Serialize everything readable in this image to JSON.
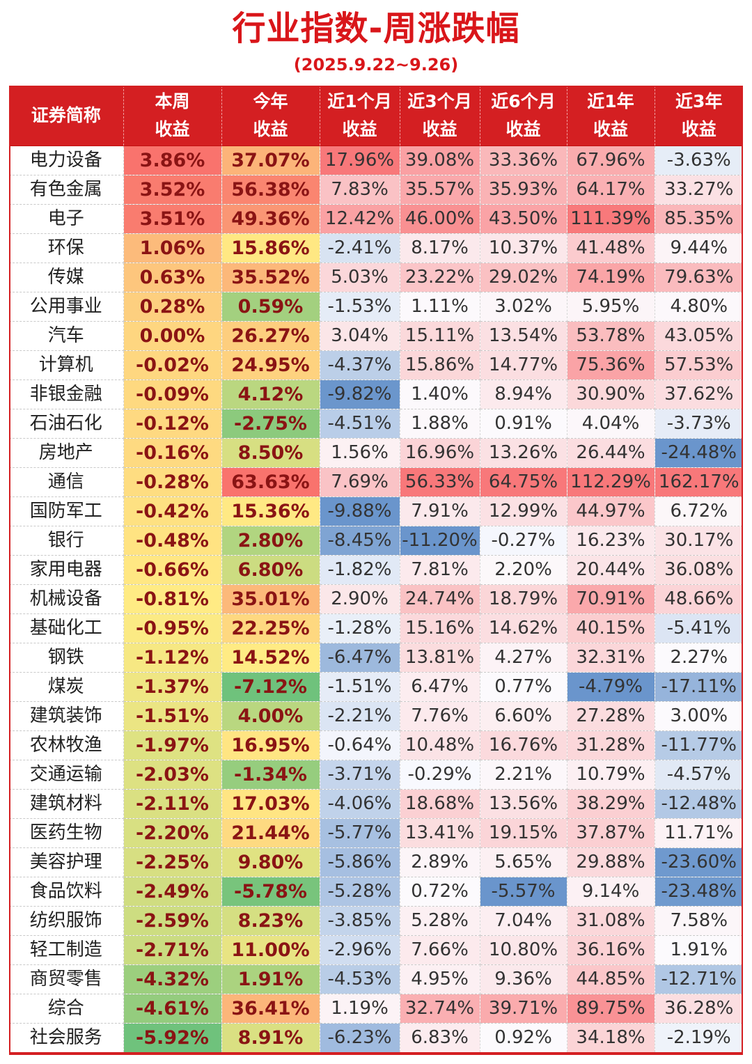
{
  "title": "行业指数-周涨跌幅",
  "subtitle": "(2025.9.22~9.26)",
  "columns": [
    {
      "line1": "证券简称",
      "line2": ""
    },
    {
      "line1": "本周",
      "line2": "收益"
    },
    {
      "line1": "今年",
      "line2": "收益"
    },
    {
      "line1": "近1个月",
      "line2": "收益"
    },
    {
      "line1": "近3个月",
      "line2": "收益"
    },
    {
      "line1": "近6个月",
      "line2": "收益"
    },
    {
      "line1": "近1年",
      "line2": "收益"
    },
    {
      "line1": "近3年",
      "line2": "收益"
    }
  ],
  "rows": [
    {
      "name": "电力设备",
      "values": [
        "3.86%",
        "37.07%",
        "17.96%",
        "39.08%",
        "33.36%",
        "67.96%",
        "-3.63%"
      ]
    },
    {
      "name": "有色金属",
      "values": [
        "3.52%",
        "56.38%",
        "7.83%",
        "35.57%",
        "35.93%",
        "64.17%",
        "33.27%"
      ]
    },
    {
      "name": "电子",
      "values": [
        "3.51%",
        "49.36%",
        "12.42%",
        "46.00%",
        "43.50%",
        "111.39%",
        "85.35%"
      ]
    },
    {
      "name": "环保",
      "values": [
        "1.06%",
        "15.86%",
        "-2.41%",
        "8.17%",
        "10.37%",
        "41.48%",
        "9.44%"
      ]
    },
    {
      "name": "传媒",
      "values": [
        "0.63%",
        "35.52%",
        "5.03%",
        "23.22%",
        "29.02%",
        "74.19%",
        "79.63%"
      ]
    },
    {
      "name": "公用事业",
      "values": [
        "0.28%",
        "0.59%",
        "-1.53%",
        "1.11%",
        "3.02%",
        "5.95%",
        "4.80%"
      ]
    },
    {
      "name": "汽车",
      "values": [
        "0.00%",
        "26.27%",
        "3.04%",
        "15.11%",
        "13.54%",
        "53.78%",
        "43.05%"
      ]
    },
    {
      "name": "计算机",
      "values": [
        "-0.02%",
        "24.95%",
        "-4.37%",
        "15.86%",
        "14.77%",
        "75.36%",
        "57.53%"
      ]
    },
    {
      "name": "非银金融",
      "values": [
        "-0.09%",
        "4.12%",
        "-9.82%",
        "1.40%",
        "8.94%",
        "30.90%",
        "37.62%"
      ]
    },
    {
      "name": "石油石化",
      "values": [
        "-0.12%",
        "-2.75%",
        "-4.51%",
        "1.88%",
        "0.91%",
        "4.04%",
        "-3.73%"
      ]
    },
    {
      "name": "房地产",
      "values": [
        "-0.16%",
        "8.50%",
        "1.56%",
        "16.96%",
        "13.26%",
        "26.44%",
        "-24.48%"
      ]
    },
    {
      "name": "通信",
      "values": [
        "-0.28%",
        "63.63%",
        "7.69%",
        "56.33%",
        "64.75%",
        "112.29%",
        "162.17%"
      ]
    },
    {
      "name": "国防军工",
      "values": [
        "-0.42%",
        "15.36%",
        "-9.88%",
        "7.91%",
        "12.99%",
        "44.97%",
        "6.72%"
      ]
    },
    {
      "name": "银行",
      "values": [
        "-0.48%",
        "2.80%",
        "-8.45%",
        "-11.20%",
        "-0.27%",
        "16.23%",
        "30.17%"
      ]
    },
    {
      "name": "家用电器",
      "values": [
        "-0.66%",
        "6.80%",
        "-1.82%",
        "7.81%",
        "2.20%",
        "20.44%",
        "36.08%"
      ]
    },
    {
      "name": "机械设备",
      "values": [
        "-0.81%",
        "35.01%",
        "2.90%",
        "24.74%",
        "18.79%",
        "70.91%",
        "48.66%"
      ]
    },
    {
      "name": "基础化工",
      "values": [
        "-0.95%",
        "22.25%",
        "-1.28%",
        "15.16%",
        "14.62%",
        "40.15%",
        "-5.41%"
      ]
    },
    {
      "name": "钢铁",
      "values": [
        "-1.12%",
        "14.52%",
        "-6.47%",
        "13.81%",
        "4.27%",
        "32.31%",
        "2.27%"
      ]
    },
    {
      "name": "煤炭",
      "values": [
        "-1.37%",
        "-7.12%",
        "-1.51%",
        "6.47%",
        "0.77%",
        "-4.79%",
        "-17.11%"
      ]
    },
    {
      "name": "建筑装饰",
      "values": [
        "-1.51%",
        "4.00%",
        "-2.21%",
        "7.76%",
        "6.60%",
        "27.28%",
        "3.00%"
      ]
    },
    {
      "name": "农林牧渔",
      "values": [
        "-1.97%",
        "16.95%",
        "-0.64%",
        "10.48%",
        "16.76%",
        "31.28%",
        "-11.77%"
      ]
    },
    {
      "name": "交通运输",
      "values": [
        "-2.03%",
        "-1.34%",
        "-3.71%",
        "-0.29%",
        "2.21%",
        "10.79%",
        "-4.57%"
      ]
    },
    {
      "name": "建筑材料",
      "values": [
        "-2.11%",
        "17.03%",
        "-4.06%",
        "18.68%",
        "13.56%",
        "38.29%",
        "-12.48%"
      ]
    },
    {
      "name": "医药生物",
      "values": [
        "-2.20%",
        "21.44%",
        "-5.77%",
        "13.41%",
        "19.15%",
        "37.87%",
        "11.71%"
      ]
    },
    {
      "name": "美容护理",
      "values": [
        "-2.25%",
        "9.80%",
        "-5.86%",
        "2.89%",
        "5.65%",
        "29.88%",
        "-23.60%"
      ]
    },
    {
      "name": "食品饮料",
      "values": [
        "-2.49%",
        "-5.78%",
        "-5.28%",
        "0.72%",
        "-5.57%",
        "9.14%",
        "-23.48%"
      ]
    },
    {
      "name": "纺织服饰",
      "values": [
        "-2.59%",
        "8.23%",
        "-3.85%",
        "5.28%",
        "7.04%",
        "31.08%",
        "7.58%"
      ]
    },
    {
      "name": "轻工制造",
      "values": [
        "-2.71%",
        "11.00%",
        "-2.96%",
        "7.66%",
        "10.80%",
        "36.16%",
        "1.91%"
      ]
    },
    {
      "name": "商贸零售",
      "values": [
        "-4.32%",
        "1.91%",
        "-4.53%",
        "4.95%",
        "9.36%",
        "44.85%",
        "-12.71%"
      ]
    },
    {
      "name": "综合",
      "values": [
        "-4.61%",
        "36.41%",
        "1.19%",
        "32.74%",
        "39.71%",
        "89.75%",
        "36.28%"
      ]
    },
    {
      "name": "社会服务",
      "values": [
        "-5.92%",
        "8.91%",
        "-6.23%",
        "6.83%",
        "0.92%",
        "34.18%",
        "-2.19%"
      ]
    }
  ],
  "colors": {
    "header_bg": "#d41f22",
    "title": "#d9161a",
    "scale_red": "#f8696b",
    "scale_yellow": "#ffeb84",
    "scale_green": "#63be7b",
    "scale_blue": "#5a8ac6",
    "neutral": "#fcfcff"
  }
}
